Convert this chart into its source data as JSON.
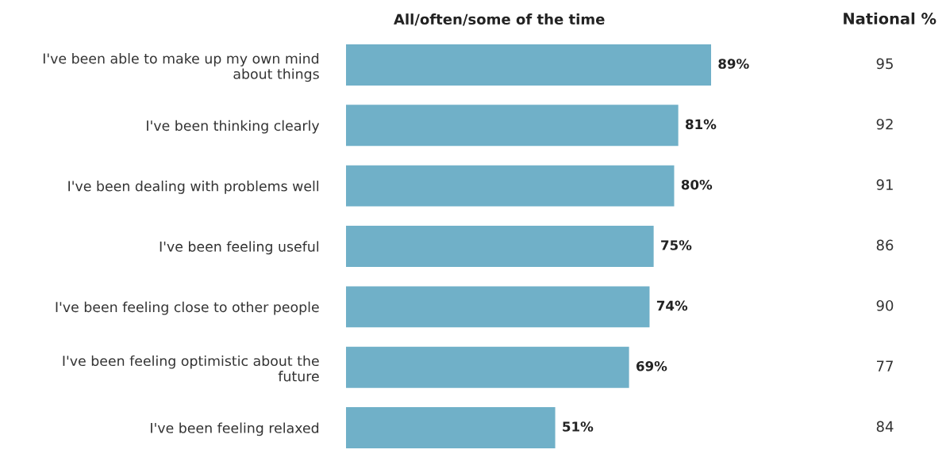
{
  "chart_data": {
    "type": "bar",
    "orientation": "horizontal",
    "categories": [
      "I've been able to make up my own mind\nabout things",
      "I've been thinking clearly",
      "I've been dealing with problems well",
      "I've been feeling useful",
      "I've been feeling close to other people",
      "I've been feeling optimistic about the\nfuture",
      "I've been feeling relaxed"
    ],
    "series": [
      {
        "name": "All/often/some of the time",
        "color": "#70b0c8",
        "values": [
          89,
          81,
          80,
          75,
          74,
          69,
          51
        ],
        "value_labels": [
          "89%",
          "81%",
          "80%",
          "75%",
          "74%",
          "69%",
          "51%"
        ]
      }
    ],
    "annotations": [
      "National %",
      "95",
      "92",
      "91",
      "86",
      "90",
      "77",
      "84"
    ],
    "grid": false,
    "legend": false
  }
}
